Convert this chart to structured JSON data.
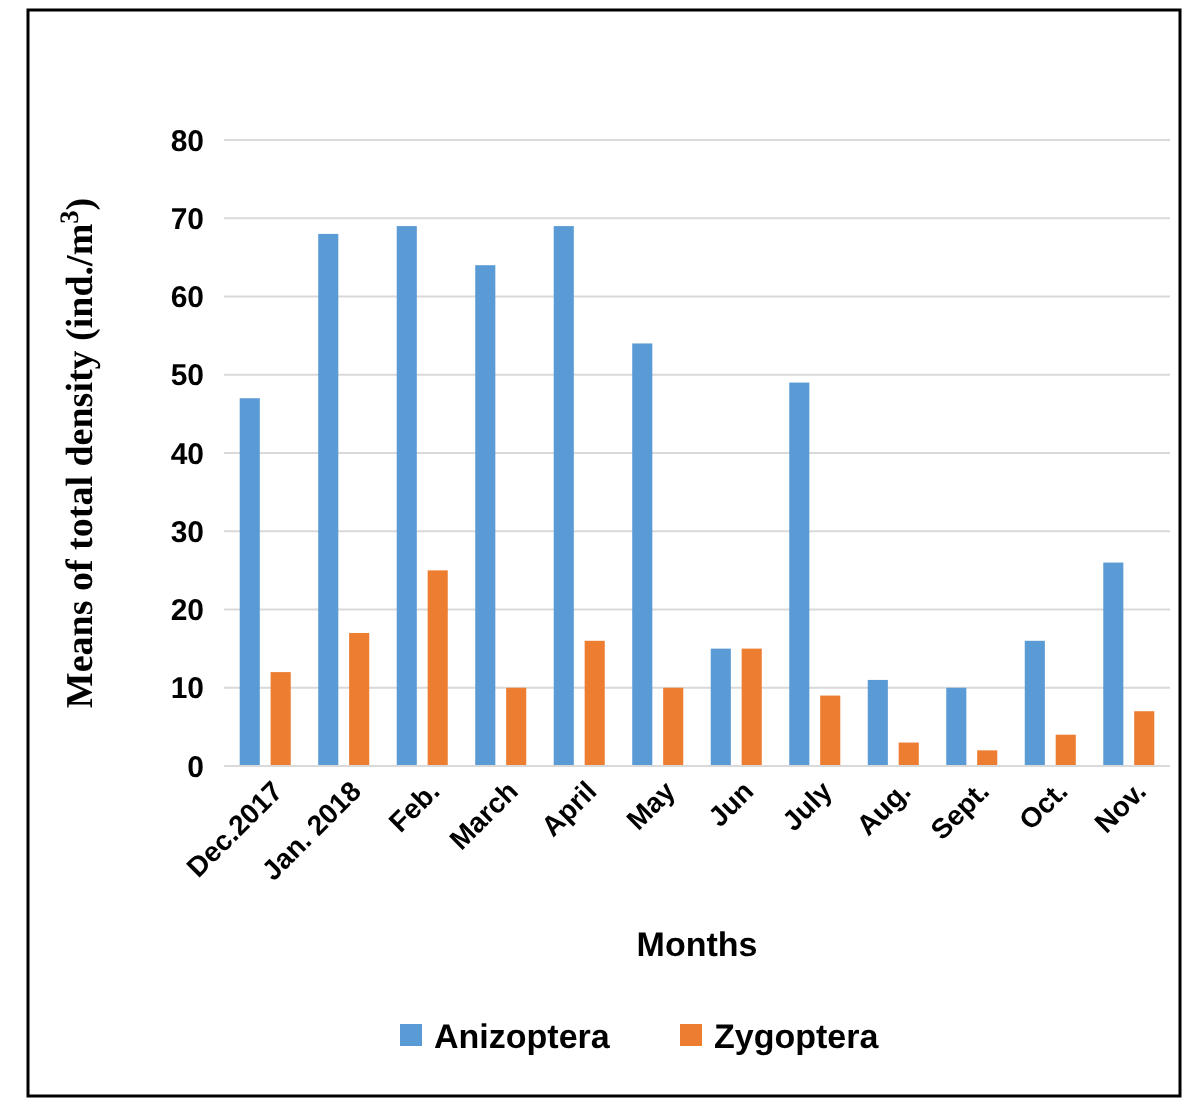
{
  "chart_data": {
    "type": "bar",
    "xlabel": "Months",
    "ylabel": "Means of total density (ind./m$^{3}$)",
    "categories": [
      "Dec.2017",
      "Jan. 2018",
      "Feb.",
      "March",
      "April",
      "May",
      "Jun",
      "July",
      "Aug.",
      "Sept.",
      "Oct.",
      "Nov."
    ],
    "series": [
      {
        "name": "Anizoptera",
        "color": "#5b9bd5",
        "values": [
          47,
          68,
          69,
          64,
          69,
          54,
          15,
          49,
          11,
          10,
          16,
          26
        ]
      },
      {
        "name": "Zygoptera",
        "color": "#ed7d31",
        "values": [
          12,
          17,
          25,
          10,
          16,
          10,
          15,
          9,
          3,
          2,
          4,
          7
        ]
      }
    ],
    "ylim": [
      0,
      80
    ],
    "yticks": [
      0,
      10,
      20,
      30,
      40,
      50,
      60,
      70,
      80
    ],
    "grid": "y",
    "legend": "bottom"
  }
}
